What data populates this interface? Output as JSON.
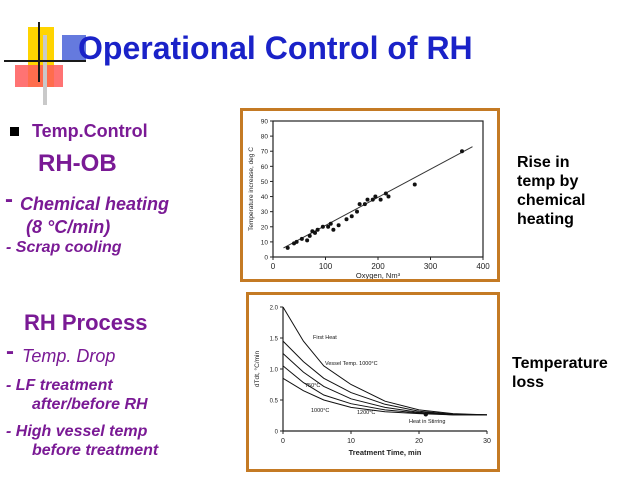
{
  "title": "Operational Control of RH",
  "left": {
    "temp_control": "Temp.Control",
    "rh_ob": "RH-OB",
    "chem_heating_dash": "-",
    "chem_heating": "Chemical heating",
    "rate": "(8 °C/min)",
    "scrap": "- Scrap  cooling",
    "rh_process": "RH Process",
    "temp_drop_dash": "-",
    "temp_drop": "Temp.  Drop",
    "lf1": "- LF treatment",
    "lf2": "after/before RH",
    "hv1": "- High vessel temp",
    "hv2": "before treatment"
  },
  "right": {
    "label1_line1": "Rise in",
    "label1_line2": "temp by",
    "label1_line3": "chemical",
    "label1_line4": "heating",
    "label2_line1": "Temperature",
    "label2_line2": "loss"
  },
  "colors": {
    "title": "#1a22c8",
    "text_purple": "#7a1a95",
    "text_blue": "#1a22c8",
    "frame": "#c47a24"
  },
  "chart_data": [
    {
      "type": "scatter",
      "xlabel": "Oxygen, Nm³",
      "ylabel": "Temperature increase, deg C",
      "xlim": [
        0,
        400
      ],
      "ylim": [
        0,
        90
      ],
      "xticks": [
        0,
        100,
        200,
        300,
        400
      ],
      "yticks": [
        0,
        10,
        20,
        30,
        40,
        50,
        60,
        70,
        80,
        90
      ],
      "points": [
        [
          28,
          6
        ],
        [
          40,
          9
        ],
        [
          45,
          10
        ],
        [
          55,
          12
        ],
        [
          65,
          11
        ],
        [
          70,
          14
        ],
        [
          75,
          17
        ],
        [
          80,
          16
        ],
        [
          85,
          18
        ],
        [
          95,
          20
        ],
        [
          105,
          20
        ],
        [
          110,
          22
        ],
        [
          115,
          18
        ],
        [
          125,
          21
        ],
        [
          140,
          25
        ],
        [
          150,
          27
        ],
        [
          160,
          30
        ],
        [
          165,
          35
        ],
        [
          175,
          35
        ],
        [
          180,
          38
        ],
        [
          190,
          38
        ],
        [
          195,
          40
        ],
        [
          205,
          38
        ],
        [
          215,
          42
        ],
        [
          220,
          40
        ],
        [
          270,
          48
        ],
        [
          360,
          70
        ]
      ],
      "fit_line": [
        [
          20,
          6
        ],
        [
          380,
          73
        ]
      ]
    },
    {
      "type": "line",
      "xlabel": "Treatment Time, min",
      "ylabel": "dTdt, °C/min",
      "xlim": [
        0,
        30
      ],
      "ylim": [
        0,
        2.0
      ],
      "xticks": [
        0,
        10,
        20,
        30
      ],
      "yticks": [
        "0",
        "0.5",
        "1.0",
        "1.5",
        "2.0"
      ],
      "annotations": [
        "First Heat",
        "Vessel Temp. 1000°C",
        "750°C",
        "1000°C",
        "1200°C",
        "Heat in Stirring"
      ],
      "series": [
        {
          "points": [
            [
              0,
              2.0
            ],
            [
              3,
              1.45
            ],
            [
              6,
              1.05
            ],
            [
              10,
              0.75
            ],
            [
              15,
              0.48
            ],
            [
              20,
              0.34
            ],
            [
              25,
              0.28
            ],
            [
              30,
              0.26
            ]
          ]
        },
        {
          "points": [
            [
              0,
              1.45
            ],
            [
              3,
              1.12
            ],
            [
              6,
              0.85
            ],
            [
              10,
              0.62
            ],
            [
              15,
              0.43
            ],
            [
              20,
              0.32
            ],
            [
              25,
              0.27
            ],
            [
              30,
              0.26
            ]
          ]
        },
        {
          "points": [
            [
              0,
              1.25
            ],
            [
              3,
              0.95
            ],
            [
              6,
              0.72
            ],
            [
              10,
              0.52
            ],
            [
              15,
              0.38
            ],
            [
              20,
              0.3
            ],
            [
              25,
              0.27
            ],
            [
              30,
              0.26
            ]
          ]
        },
        {
          "points": [
            [
              0,
              1.05
            ],
            [
              3,
              0.78
            ],
            [
              6,
              0.58
            ],
            [
              10,
              0.44
            ],
            [
              15,
              0.34
            ],
            [
              20,
              0.29
            ],
            [
              25,
              0.26
            ],
            [
              30,
              0.26
            ]
          ]
        },
        {
          "points": [
            [
              0,
              0.85
            ],
            [
              3,
              0.65
            ],
            [
              6,
              0.5
            ],
            [
              10,
              0.38
            ],
            [
              15,
              0.31
            ],
            [
              20,
              0.28
            ],
            [
              25,
              0.26
            ],
            [
              30,
              0.26
            ]
          ]
        }
      ]
    }
  ]
}
